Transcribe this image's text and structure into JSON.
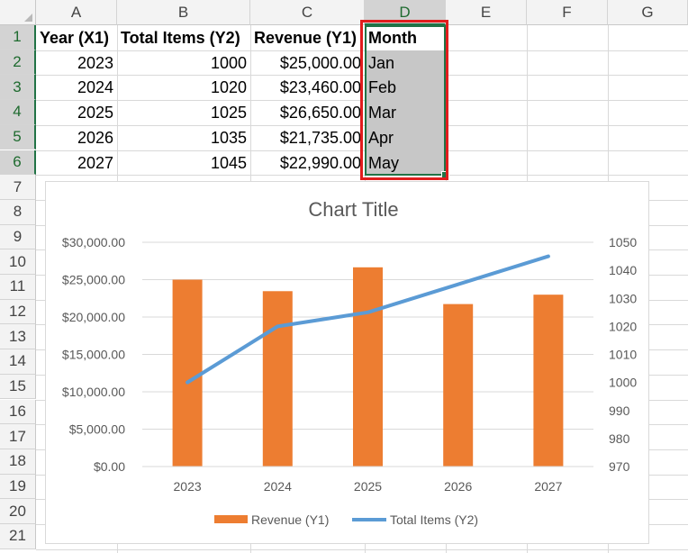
{
  "columns": [
    "A",
    "B",
    "C",
    "D",
    "E",
    "F",
    "G"
  ],
  "selected_column": "D",
  "rows": [
    "1",
    "2",
    "3",
    "4",
    "5",
    "6",
    "7",
    "8",
    "9",
    "10",
    "11",
    "12",
    "13",
    "14",
    "15",
    "16",
    "17",
    "18",
    "19",
    "20",
    "21"
  ],
  "selected_rows": [
    "1",
    "2",
    "3",
    "4",
    "5",
    "6"
  ],
  "table": {
    "headers": [
      "Year (X1)",
      "Total Items (Y2)",
      "Revenue (Y1)",
      "Month"
    ],
    "rows": [
      [
        "2023",
        "1000",
        "$25,000.00",
        "Jan"
      ],
      [
        "2024",
        "1020",
        "$23,460.00",
        "Feb"
      ],
      [
        "2025",
        "1025",
        "$26,650.00",
        "Mar"
      ],
      [
        "2026",
        "1035",
        "$21,735.00",
        "Apr"
      ],
      [
        "2027",
        "1045",
        "$22,990.00",
        "May"
      ]
    ]
  },
  "chart_data": {
    "type": "bar+line",
    "title": "Chart Title",
    "categories": [
      "2023",
      "2024",
      "2025",
      "2026",
      "2027"
    ],
    "series": [
      {
        "name": "Revenue (Y1)",
        "type": "bar",
        "axis": "primary",
        "color": "#ed7d31",
        "values": [
          25000,
          23460,
          26650,
          21735,
          22990
        ]
      },
      {
        "name": "Total Items (Y2)",
        "type": "line",
        "axis": "secondary",
        "color": "#5b9bd5",
        "values": [
          1000,
          1020,
          1025,
          1035,
          1045
        ]
      }
    ],
    "primary_ylim": [
      0,
      30000
    ],
    "primary_yticks": [
      "$0.00",
      "$5,000.00",
      "$10,000.00",
      "$15,000.00",
      "$20,000.00",
      "$25,000.00",
      "$30,000.00"
    ],
    "secondary_ylim": [
      970,
      1050
    ],
    "secondary_yticks": [
      "970",
      "980",
      "990",
      "1000",
      "1010",
      "1020",
      "1030",
      "1040",
      "1050"
    ],
    "grid": true,
    "legend_position": "bottom"
  },
  "colors": {
    "selection_green": "#217346",
    "highlight_red": "#e11d1d",
    "bar_orange": "#ed7d31",
    "line_blue": "#5b9bd5"
  }
}
